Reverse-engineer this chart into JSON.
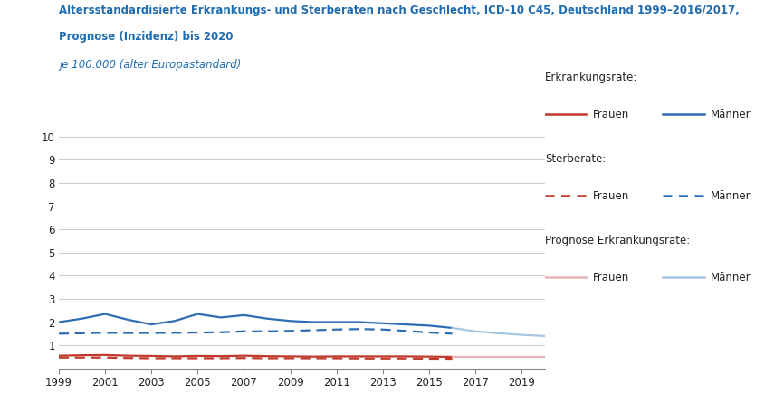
{
  "title_line1": "Altersstandardisierte Erkrankungs- und Sterberaten nach Geschlecht, ICD-10 C45, Deutschland 1999–2016/2017,",
  "title_line2": "Prognose (Inzidenz) bis 2020",
  "subtitle": "je 100.000 (alter Europastandard)",
  "title_color": "#1F6CB0",
  "subtitle_color": "#1F6CB0",
  "ylim": [
    0,
    10
  ],
  "yticks": [
    1,
    2,
    3,
    4,
    5,
    6,
    7,
    8,
    9,
    10
  ],
  "years_main": [
    1999,
    2000,
    2001,
    2002,
    2003,
    2004,
    2005,
    2006,
    2007,
    2008,
    2009,
    2010,
    2011,
    2012,
    2013,
    2014,
    2015,
    2016
  ],
  "years_prognose": [
    2016,
    2017,
    2018,
    2019,
    2020
  ],
  "erkrankung_frauen": [
    0.55,
    0.57,
    0.58,
    0.55,
    0.54,
    0.52,
    0.54,
    0.53,
    0.55,
    0.53,
    0.52,
    0.51,
    0.52,
    0.52,
    0.52,
    0.52,
    0.51,
    0.5
  ],
  "erkrankung_maenner": [
    2.0,
    2.15,
    2.35,
    2.1,
    1.9,
    2.05,
    2.35,
    2.2,
    2.3,
    2.15,
    2.05,
    2.0,
    2.0,
    2.0,
    1.95,
    1.9,
    1.85,
    1.75
  ],
  "sterbe_frauen": [
    0.47,
    0.47,
    0.47,
    0.45,
    0.44,
    0.44,
    0.44,
    0.44,
    0.45,
    0.44,
    0.44,
    0.44,
    0.44,
    0.43,
    0.43,
    0.43,
    0.42,
    0.42
  ],
  "sterbe_maenner": [
    1.5,
    1.52,
    1.54,
    1.53,
    1.53,
    1.54,
    1.55,
    1.56,
    1.6,
    1.6,
    1.62,
    1.65,
    1.68,
    1.7,
    1.68,
    1.62,
    1.55,
    1.5
  ],
  "prognose_frauen": [
    0.5,
    0.5,
    0.5,
    0.5,
    0.5
  ],
  "prognose_maenner": [
    1.75,
    1.6,
    1.52,
    1.45,
    1.4
  ],
  "color_frauen_erkrankung": "#C0392B",
  "color_maenner_erkrankung": "#2E6DB4",
  "color_frauen_sterbe": "#C0392B",
  "color_maenner_sterbe": "#2E6DB4",
  "color_frauen_prognose": "#E8B4B8",
  "color_maenner_prognose": "#A8C4E0",
  "xticks": [
    1999,
    2001,
    2003,
    2005,
    2007,
    2009,
    2011,
    2013,
    2015,
    2017,
    2019
  ],
  "background_color": "#ffffff",
  "grid_color": "#cccccc",
  "text_color": "#222222"
}
